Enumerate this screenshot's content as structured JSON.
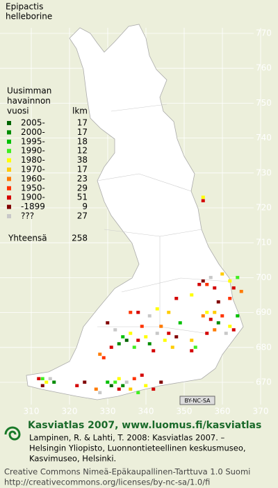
{
  "title": [
    "Epipactis",
    "helleborine"
  ],
  "legend": {
    "header": [
      "Uusimman",
      "havainnon",
      "vuosi"
    ],
    "count_header": "lkm",
    "rows": [
      {
        "label": "2005-",
        "count": 17,
        "color": "#006400"
      },
      {
        "label": "2000-",
        "count": 17,
        "color": "#008c00"
      },
      {
        "label": "1995-",
        "count": 18,
        "color": "#00c000"
      },
      {
        "label": "1990-",
        "count": 12,
        "color": "#40ee20"
      },
      {
        "label": "1980-",
        "count": 38,
        "color": "#ffff00"
      },
      {
        "label": "1970-",
        "count": 17,
        "color": "#ffcc00"
      },
      {
        "label": "1960-",
        "count": 23,
        "color": "#ff7a00"
      },
      {
        "label": "1950-",
        "count": 29,
        "color": "#ff3300"
      },
      {
        "label": "1900-",
        "count": 51,
        "color": "#d40000"
      },
      {
        "label": "-1899",
        "count": 9,
        "color": "#800000"
      },
      {
        "label": "???",
        "count": 27,
        "color": "#c8c8c8"
      }
    ],
    "total_label": "Yhteensä",
    "total": 258
  },
  "grid": {
    "xticks": [
      310,
      320,
      330,
      340,
      350,
      360,
      370
    ],
    "yticks": [
      770,
      760,
      750,
      740,
      730,
      720,
      710,
      700,
      690,
      680,
      670
    ],
    "xlim": [
      310,
      370
    ],
    "ylim": [
      670,
      770
    ]
  },
  "squares": [
    [
      312,
      671,
      8
    ],
    [
      313,
      671,
      3
    ],
    [
      314,
      670,
      4
    ],
    [
      315,
      671,
      10
    ],
    [
      313,
      669,
      9
    ],
    [
      316,
      670,
      1
    ],
    [
      322,
      669,
      8
    ],
    [
      324,
      670,
      9
    ],
    [
      327,
      668,
      6
    ],
    [
      328,
      667,
      10
    ],
    [
      330,
      670,
      2
    ],
    [
      331,
      669,
      0
    ],
    [
      332,
      670,
      3
    ],
    [
      333,
      671,
      4
    ],
    [
      334,
      669,
      1
    ],
    [
      333,
      668,
      8
    ],
    [
      335,
      670,
      10
    ],
    [
      336,
      668,
      5
    ],
    [
      337,
      671,
      7
    ],
    [
      338,
      667,
      3
    ],
    [
      340,
      669,
      4
    ],
    [
      342,
      668,
      8
    ],
    [
      344,
      670,
      9
    ],
    [
      339,
      672,
      8
    ],
    [
      328,
      678,
      6
    ],
    [
      329,
      677,
      7
    ],
    [
      331,
      680,
      8
    ],
    [
      333,
      681,
      1
    ],
    [
      334,
      683,
      2
    ],
    [
      335,
      682,
      0
    ],
    [
      336,
      684,
      4
    ],
    [
      337,
      680,
      3
    ],
    [
      338,
      682,
      8
    ],
    [
      332,
      685,
      10
    ],
    [
      330,
      687,
      9
    ],
    [
      339,
      686,
      7
    ],
    [
      340,
      683,
      4
    ],
    [
      341,
      681,
      1
    ],
    [
      342,
      679,
      8
    ],
    [
      343,
      684,
      10
    ],
    [
      344,
      686,
      6
    ],
    [
      345,
      682,
      4
    ],
    [
      346,
      684,
      8
    ],
    [
      347,
      680,
      5
    ],
    [
      348,
      683,
      9
    ],
    [
      349,
      687,
      2
    ],
    [
      338,
      690,
      8
    ],
    [
      341,
      689,
      10
    ],
    [
      343,
      691,
      4
    ],
    [
      336,
      690,
      7
    ],
    [
      352,
      682,
      5
    ],
    [
      352,
      679,
      8
    ],
    [
      353,
      680,
      3
    ],
    [
      355,
      689,
      6
    ],
    [
      356,
      690,
      4
    ],
    [
      357,
      688,
      8
    ],
    [
      358,
      690,
      5
    ],
    [
      359,
      687,
      1
    ],
    [
      360,
      689,
      7
    ],
    [
      362,
      686,
      4
    ],
    [
      361,
      684,
      10
    ],
    [
      363,
      685,
      8
    ],
    [
      364,
      689,
      2
    ],
    [
      358,
      685,
      6
    ],
    [
      356,
      684,
      8
    ],
    [
      354,
      698,
      8
    ],
    [
      355,
      699,
      9
    ],
    [
      356,
      698,
      7
    ],
    [
      357,
      700,
      10
    ],
    [
      358,
      697,
      8
    ],
    [
      360,
      701,
      5
    ],
    [
      362,
      699,
      4
    ],
    [
      363,
      697,
      8
    ],
    [
      364,
      700,
      3
    ],
    [
      362,
      694,
      7
    ],
    [
      352,
      695,
      4
    ],
    [
      365,
      696,
      6
    ],
    [
      359,
      693,
      9
    ],
    [
      348,
      694,
      8
    ],
    [
      346,
      690,
      5
    ],
    [
      355,
      722,
      8
    ],
    [
      355,
      723,
      4
    ]
  ],
  "license_badge": "BY-NC-SA",
  "footer": {
    "heading": "Kasviatlas 2007, www.luomus.fi/kasviatlas",
    "citation": [
      "Lampinen, R. & Lahti, T. 2008: Kasviatlas 2007. –",
      "Helsingin Yliopisto, Luonnontieteellinen keskusmuseo,",
      "Kasvimuseo, Helsinki."
    ],
    "license": [
      "Creative Commons Nimeä-Epäkaupallinen-Tarttuva 1.0 Suomi",
      "http://creativecommons.org/licenses/by-nc-sa/1.0/fi"
    ]
  }
}
